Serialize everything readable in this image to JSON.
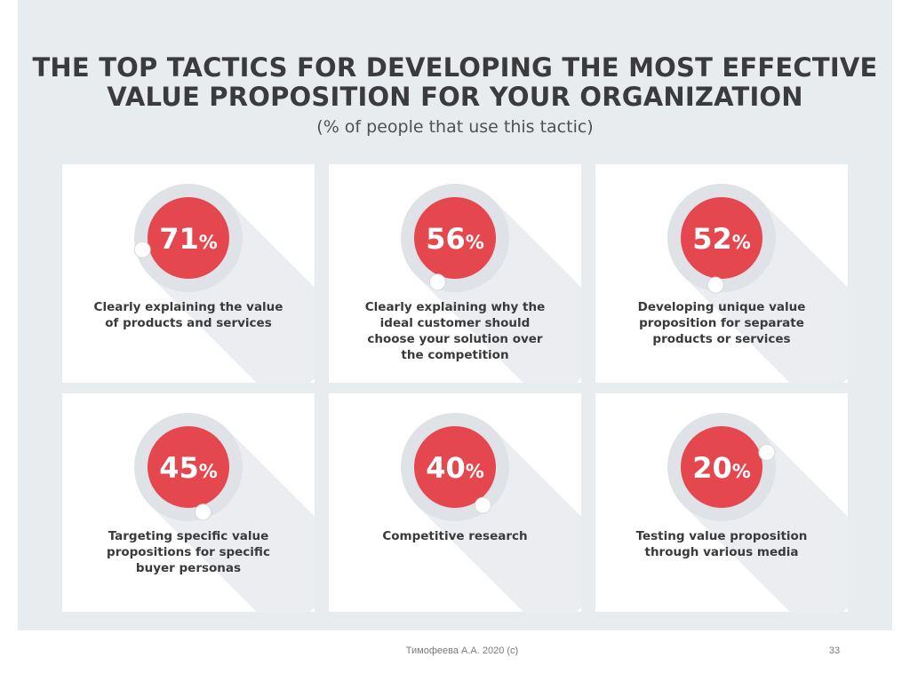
{
  "chart_data": {
    "type": "bar",
    "title": "THE TOP TACTICS FOR DEVELOPING THE MOST EFFECTIVE VALUE PROPOSITION FOR YOUR ORGANIZATION",
    "title_lines": [
      "THE TOP TACTICS FOR DEVELOPING THE MOST EFFECTIVE",
      "VALUE PROPOSITION FOR YOUR ORGANIZATION"
    ],
    "subtitle": "(% of people that use this tactic)",
    "unit": "%",
    "ylim": [
      0,
      100
    ],
    "categories": [
      "Clearly explaining the value of products and services",
      "Clearly explaining why the ideal customer should choose your solution over the competition",
      "Developing unique value proposition for separate products or services",
      "Targeting specific value propositions for specific buyer personas",
      "Competitive research",
      "Testing value proposition through various media"
    ],
    "values": [
      71,
      56,
      52,
      45,
      40,
      20
    ],
    "items": [
      {
        "value": 71,
        "value_label": "71",
        "label_lines": [
          "Clearly explaining the value",
          "of products and services"
        ]
      },
      {
        "value": 56,
        "value_label": "56",
        "label_lines": [
          "Clearly explaining why the",
          "ideal customer should",
          "choose your solution over",
          "the competition"
        ]
      },
      {
        "value": 52,
        "value_label": "52",
        "label_lines": [
          "Developing unique value",
          "proposition for separate",
          "products or services"
        ]
      },
      {
        "value": 45,
        "value_label": "45",
        "label_lines": [
          "Targeting specific value",
          "propositions for specific",
          "buyer personas"
        ]
      },
      {
        "value": 40,
        "value_label": "40",
        "label_lines": [
          "Competitive research"
        ]
      },
      {
        "value": 20,
        "value_label": "20",
        "label_lines": [
          "Testing value proposition",
          "through various media"
        ]
      }
    ]
  },
  "colors": {
    "accent": "#e5474f",
    "ring": "#dfe2e6",
    "marker": "#ffffff",
    "shadow": "#dcdfe3",
    "text": "#3a3a3c"
  },
  "footer": {
    "author": "Тимофеева А.А. 2020 (c)",
    "page_number": "33"
  }
}
